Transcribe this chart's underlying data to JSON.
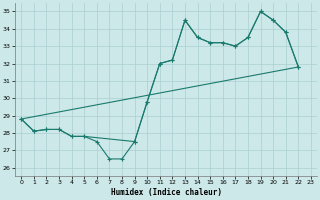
{
  "xlabel": "Humidex (Indice chaleur)",
  "bg_color": "#cce8e8",
  "grid_color": "#aacfcf",
  "line_color": "#1a7a6e",
  "xlim": [
    -0.5,
    23.5
  ],
  "ylim": [
    25.5,
    35.5
  ],
  "xticks": [
    0,
    1,
    2,
    3,
    4,
    5,
    6,
    7,
    8,
    9,
    10,
    11,
    12,
    13,
    14,
    15,
    16,
    17,
    18,
    19,
    20,
    21,
    22,
    23
  ],
  "yticks": [
    26,
    27,
    28,
    29,
    30,
    31,
    32,
    33,
    34,
    35
  ],
  "line1_x": [
    0,
    1,
    2,
    3,
    4,
    5,
    6,
    7,
    8,
    9,
    10,
    11,
    12,
    13,
    14,
    15,
    16,
    17,
    18,
    19,
    20,
    21,
    22
  ],
  "line1_y": [
    28.8,
    28.1,
    28.2,
    28.2,
    27.8,
    27.8,
    27.5,
    26.5,
    26.5,
    27.5,
    29.8,
    32.0,
    32.2,
    34.5,
    33.5,
    33.2,
    33.2,
    33.0,
    33.5,
    35.0,
    34.5,
    33.8,
    31.8
  ],
  "line2_x": [
    0,
    1,
    2,
    3,
    4,
    5,
    9,
    10,
    11,
    12,
    13,
    14,
    15,
    16,
    17,
    18,
    19,
    20,
    21,
    22
  ],
  "line2_y": [
    28.8,
    28.1,
    28.2,
    28.2,
    27.8,
    27.8,
    27.5,
    29.8,
    32.0,
    32.2,
    34.5,
    33.5,
    33.2,
    33.2,
    33.0,
    33.5,
    35.0,
    34.5,
    33.8,
    31.8
  ],
  "line3_x": [
    0,
    22
  ],
  "line3_y": [
    28.8,
    31.8
  ]
}
